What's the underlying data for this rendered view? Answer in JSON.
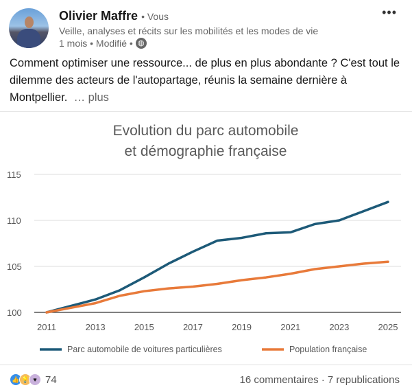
{
  "author": {
    "name": "Olivier Maffre",
    "badge": "• Vous",
    "headline": "Veille, analyses et récits sur les mobilités et les modes de vie",
    "time": "1 mois • Modifié •",
    "visibility_icon": "globe-icon"
  },
  "post": {
    "text": "Comment optimiser une ressource... de plus en plus abondante ? C'est tout le dilemme des acteurs de l'autopartage, réunis la semaine dernière à Montpellier.",
    "more": "… plus"
  },
  "social": {
    "reactions": "74",
    "comments": "16 commentaires",
    "separator": "·",
    "reposts": "7 republications"
  },
  "chart_data": {
    "type": "line",
    "title": [
      "Evolution du parc automobile",
      "et démographie française"
    ],
    "x": [
      2011,
      2012,
      2013,
      2014,
      2015,
      2016,
      2017,
      2018,
      2019,
      2020,
      2021,
      2022,
      2023,
      2024,
      2025
    ],
    "xticks": [
      "2011",
      "2013",
      "2015",
      "2017",
      "2019",
      "2021",
      "2023",
      "2025"
    ],
    "yticks": [
      "100",
      "105",
      "110",
      "115"
    ],
    "ylim": [
      100,
      115
    ],
    "legend_position": "bottom",
    "series": [
      {
        "name": "Parc automobile de voitures particulières",
        "color": "#1d5a78",
        "values": [
          100,
          100.7,
          101.4,
          102.4,
          103.8,
          105.3,
          106.6,
          107.8,
          108.1,
          108.6,
          108.7,
          109.6,
          110.0,
          111.0,
          112.0
        ]
      },
      {
        "name": "Population française",
        "color": "#e87a3a",
        "values": [
          100,
          100.5,
          101.0,
          101.8,
          102.3,
          102.6,
          102.8,
          103.1,
          103.5,
          103.8,
          104.2,
          104.7,
          105.0,
          105.3,
          105.5
        ]
      }
    ]
  }
}
